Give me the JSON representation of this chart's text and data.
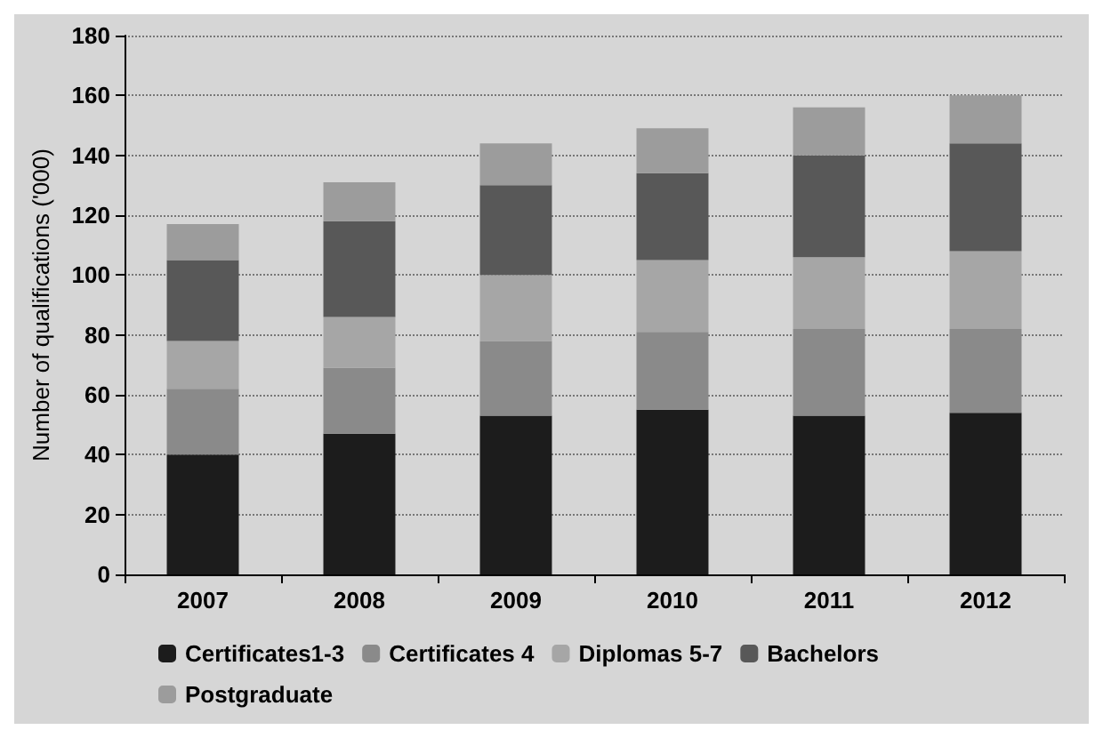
{
  "chart_data": {
    "type": "bar",
    "stacked": true,
    "ylabel": "Number of qualifications ('000)",
    "categories": [
      "2007",
      "2008",
      "2009",
      "2010",
      "2011",
      "2012"
    ],
    "series": [
      {
        "name": "Certificates1-3",
        "color": "#1c1c1c",
        "values": [
          40,
          47,
          53,
          55,
          53,
          54
        ]
      },
      {
        "name": "Certificates 4",
        "color": "#8a8a8a",
        "values": [
          22,
          22,
          25,
          26,
          29,
          28
        ]
      },
      {
        "name": "Diplomas 5-7",
        "color": "#a6a6a6",
        "values": [
          16,
          17,
          22,
          24,
          24,
          26
        ]
      },
      {
        "name": "Bachelors",
        "color": "#585858",
        "values": [
          27,
          32,
          30,
          29,
          34,
          36
        ]
      },
      {
        "name": "Postgraduate",
        "color": "#9c9c9c",
        "values": [
          12,
          13,
          14,
          15,
          16,
          16
        ]
      }
    ],
    "ylim": [
      0,
      180
    ],
    "yticks": [
      0,
      20,
      40,
      60,
      80,
      100,
      120,
      140,
      160,
      180
    ],
    "grid": "y",
    "legend": "bottom"
  }
}
